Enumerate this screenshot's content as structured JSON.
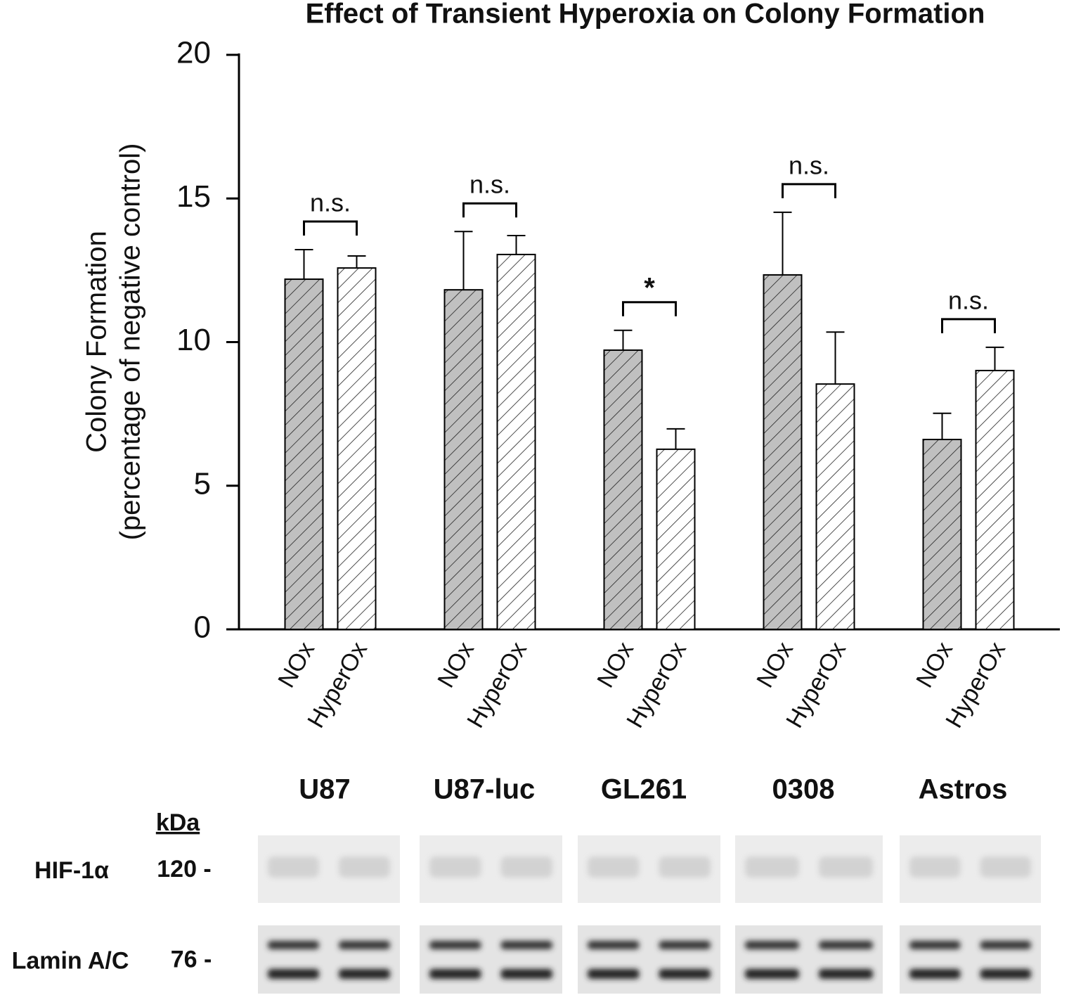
{
  "chart_data": {
    "type": "bar",
    "title": "Effect of Transient Hyperoxia on Colony Formation",
    "ylabel": "Colony Formation",
    "ylabel_sub": "(percentage of negative control)",
    "categories": [
      "U87",
      "U87-luc",
      "GL261",
      "0308",
      "Astros"
    ],
    "series": [
      {
        "name": "NOx",
        "color": "#c0c0c0",
        "values": [
          12.19,
          11.82,
          9.72,
          12.34,
          6.61
        ],
        "errors": [
          1.03,
          2.03,
          0.69,
          2.18,
          0.91
        ]
      },
      {
        "name": "HyperOx",
        "color": "#ffffff",
        "values": [
          12.58,
          13.05,
          6.27,
          8.54,
          9.01
        ],
        "errors": [
          0.42,
          0.66,
          0.71,
          1.81,
          0.81
        ]
      }
    ],
    "significance": [
      "n.s.",
      "n.s.",
      "*",
      "n.s.",
      "n.s."
    ],
    "ylim": [
      0,
      20
    ],
    "yticks": [
      0,
      5,
      10,
      15,
      20
    ],
    "grid": false
  },
  "blot": {
    "unit": "kDa",
    "rows": [
      {
        "label": "HIF-1α",
        "kda": "120 -"
      },
      {
        "label": "Lamin A/C",
        "kda": "76 -"
      }
    ]
  }
}
